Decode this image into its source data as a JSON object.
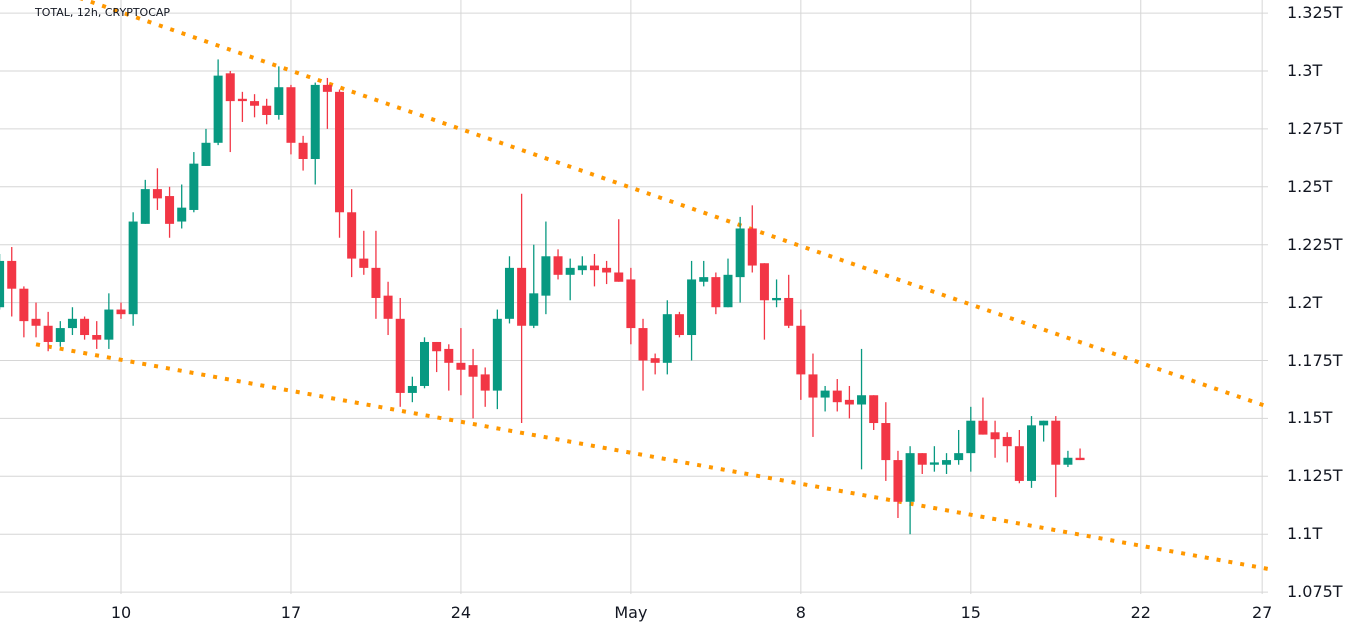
{
  "header": {
    "symbol_label": "TOTAL, 12h, CRYPTOCAP"
  },
  "colors": {
    "up": "#089981",
    "down": "#f23645",
    "trendline": "#ff9800",
    "grid": "#d6d6d6",
    "text": "#131722"
  },
  "chart_data": {
    "type": "candlestick",
    "title": "TOTAL, 12h, CRYPTOCAP",
    "interval": "12h",
    "y_unit": "T",
    "ylim": [
      1.075,
      1.335
    ],
    "grid": true,
    "x_ticks": [
      {
        "label": "10",
        "date": "04-10"
      },
      {
        "label": "17",
        "date": "04-17"
      },
      {
        "label": "24",
        "date": "04-24"
      },
      {
        "label": "May",
        "date": "05-01"
      },
      {
        "label": "8",
        "date": "05-08"
      },
      {
        "label": "15",
        "date": "05-15"
      },
      {
        "label": "22",
        "date": "05-22"
      },
      {
        "label": "27",
        "date": "05-27"
      }
    ],
    "y_ticks": [
      {
        "label": "1.325T",
        "value": 1.325
      },
      {
        "label": "1.3T",
        "value": 1.3
      },
      {
        "label": "1.275T",
        "value": 1.275
      },
      {
        "label": "1.25T",
        "value": 1.25
      },
      {
        "label": "1.225T",
        "value": 1.225
      },
      {
        "label": "1.2T",
        "value": 1.2
      },
      {
        "label": "1.175T",
        "value": 1.175
      },
      {
        "label": "1.15T",
        "value": 1.15
      },
      {
        "label": "1.125T",
        "value": 1.125
      },
      {
        "label": "1.1T",
        "value": 1.1
      },
      {
        "label": "1.075T",
        "value": 1.075
      }
    ],
    "candle_fields": [
      "time",
      "open",
      "high",
      "low",
      "close"
    ],
    "candles": [
      [
        "04-05T00",
        1.198,
        1.221,
        1.197,
        1.218
      ],
      [
        "04-05T12",
        1.218,
        1.224,
        1.194,
        1.206
      ],
      [
        "04-06T00",
        1.206,
        1.207,
        1.185,
        1.192
      ],
      [
        "04-06T12",
        1.193,
        1.2,
        1.185,
        1.19
      ],
      [
        "04-07T00",
        1.19,
        1.196,
        1.179,
        1.183
      ],
      [
        "04-07T12",
        1.183,
        1.192,
        1.181,
        1.189
      ],
      [
        "04-08T00",
        1.189,
        1.198,
        1.186,
        1.193
      ],
      [
        "04-08T12",
        1.193,
        1.194,
        1.184,
        1.186
      ],
      [
        "04-09T00",
        1.186,
        1.192,
        1.18,
        1.184
      ],
      [
        "04-09T12",
        1.184,
        1.204,
        1.18,
        1.197
      ],
      [
        "04-10T00",
        1.197,
        1.2,
        1.193,
        1.195
      ],
      [
        "04-10T12",
        1.195,
        1.239,
        1.19,
        1.235
      ],
      [
        "04-11T00",
        1.234,
        1.253,
        1.234,
        1.249
      ],
      [
        "04-11T12",
        1.249,
        1.258,
        1.24,
        1.245
      ],
      [
        "04-12T00",
        1.246,
        1.25,
        1.228,
        1.234
      ],
      [
        "04-12T12",
        1.235,
        1.251,
        1.232,
        1.241
      ],
      [
        "04-13T00",
        1.24,
        1.265,
        1.239,
        1.26
      ],
      [
        "04-13T12",
        1.259,
        1.275,
        1.259,
        1.269
      ],
      [
        "04-14T00",
        1.269,
        1.305,
        1.268,
        1.298
      ],
      [
        "04-14T12",
        1.299,
        1.3,
        1.265,
        1.287
      ],
      [
        "04-15T00",
        1.288,
        1.291,
        1.278,
        1.287
      ],
      [
        "04-15T12",
        1.287,
        1.29,
        1.28,
        1.285
      ],
      [
        "04-16T00",
        1.285,
        1.288,
        1.277,
        1.281
      ],
      [
        "04-16T12",
        1.281,
        1.302,
        1.279,
        1.293
      ],
      [
        "04-17T00",
        1.293,
        1.294,
        1.264,
        1.269
      ],
      [
        "04-17T12",
        1.269,
        1.272,
        1.257,
        1.262
      ],
      [
        "04-18T00",
        1.262,
        1.295,
        1.251,
        1.294
      ],
      [
        "04-18T12",
        1.294,
        1.297,
        1.275,
        1.291
      ],
      [
        "04-19T00",
        1.291,
        1.292,
        1.228,
        1.239
      ],
      [
        "04-19T12",
        1.239,
        1.249,
        1.211,
        1.219
      ],
      [
        "04-20T00",
        1.219,
        1.231,
        1.212,
        1.215
      ],
      [
        "04-20T12",
        1.215,
        1.231,
        1.193,
        1.202
      ],
      [
        "04-21T00",
        1.203,
        1.209,
        1.186,
        1.193
      ],
      [
        "04-21T12",
        1.193,
        1.202,
        1.155,
        1.161
      ],
      [
        "04-22T00",
        1.161,
        1.168,
        1.157,
        1.164
      ],
      [
        "04-22T12",
        1.164,
        1.185,
        1.163,
        1.183
      ],
      [
        "04-23T00",
        1.183,
        1.183,
        1.17,
        1.179
      ],
      [
        "04-23T12",
        1.18,
        1.182,
        1.162,
        1.174
      ],
      [
        "04-24T00",
        1.174,
        1.189,
        1.16,
        1.171
      ],
      [
        "04-24T12",
        1.173,
        1.18,
        1.15,
        1.168
      ],
      [
        "04-25T00",
        1.169,
        1.172,
        1.155,
        1.162
      ],
      [
        "04-25T12",
        1.162,
        1.197,
        1.154,
        1.193
      ],
      [
        "04-26T00",
        1.193,
        1.22,
        1.191,
        1.215
      ],
      [
        "04-26T12",
        1.215,
        1.247,
        1.148,
        1.19
      ],
      [
        "04-27T00",
        1.19,
        1.225,
        1.189,
        1.204
      ],
      [
        "04-27T12",
        1.203,
        1.235,
        1.195,
        1.22
      ],
      [
        "04-28T00",
        1.22,
        1.223,
        1.21,
        1.212
      ],
      [
        "04-28T12",
        1.212,
        1.219,
        1.201,
        1.215
      ],
      [
        "04-29T00",
        1.214,
        1.22,
        1.212,
        1.216
      ],
      [
        "04-29T12",
        1.216,
        1.221,
        1.207,
        1.214
      ],
      [
        "04-30T00",
        1.215,
        1.218,
        1.208,
        1.213
      ],
      [
        "04-30T12",
        1.213,
        1.236,
        1.209,
        1.209
      ],
      [
        "05-01T00",
        1.21,
        1.215,
        1.182,
        1.189
      ],
      [
        "05-01T12",
        1.189,
        1.193,
        1.162,
        1.175
      ],
      [
        "05-02T00",
        1.176,
        1.178,
        1.169,
        1.174
      ],
      [
        "05-02T12",
        1.174,
        1.201,
        1.169,
        1.195
      ],
      [
        "05-03T00",
        1.195,
        1.196,
        1.185,
        1.186
      ],
      [
        "05-03T12",
        1.186,
        1.218,
        1.175,
        1.21
      ],
      [
        "05-04T00",
        1.209,
        1.218,
        1.207,
        1.211
      ],
      [
        "05-04T12",
        1.211,
        1.213,
        1.195,
        1.198
      ],
      [
        "05-05T00",
        1.198,
        1.219,
        1.198,
        1.212
      ],
      [
        "05-05T12",
        1.211,
        1.237,
        1.2,
        1.232
      ],
      [
        "05-06T00",
        1.232,
        1.242,
        1.213,
        1.216
      ],
      [
        "05-06T12",
        1.217,
        1.217,
        1.184,
        1.201
      ],
      [
        "05-07T00",
        1.201,
        1.21,
        1.198,
        1.202
      ],
      [
        "05-07T12",
        1.202,
        1.212,
        1.189,
        1.19
      ],
      [
        "05-08T00",
        1.19,
        1.197,
        1.158,
        1.169
      ],
      [
        "05-08T12",
        1.169,
        1.178,
        1.142,
        1.159
      ],
      [
        "05-09T00",
        1.159,
        1.164,
        1.153,
        1.162
      ],
      [
        "05-09T12",
        1.162,
        1.167,
        1.153,
        1.157
      ],
      [
        "05-10T00",
        1.158,
        1.164,
        1.15,
        1.156
      ],
      [
        "05-10T12",
        1.156,
        1.18,
        1.128,
        1.16
      ],
      [
        "05-11T00",
        1.16,
        1.16,
        1.145,
        1.148
      ],
      [
        "05-11T12",
        1.148,
        1.157,
        1.123,
        1.132
      ],
      [
        "05-12T00",
        1.132,
        1.136,
        1.107,
        1.114
      ],
      [
        "05-12T12",
        1.114,
        1.138,
        1.1,
        1.135
      ],
      [
        "05-13T00",
        1.135,
        1.135,
        1.126,
        1.13
      ],
      [
        "05-13T12",
        1.13,
        1.138,
        1.127,
        1.131
      ],
      [
        "05-14T00",
        1.13,
        1.135,
        1.126,
        1.132
      ],
      [
        "05-14T12",
        1.132,
        1.145,
        1.13,
        1.135
      ],
      [
        "05-15T00",
        1.135,
        1.155,
        1.127,
        1.149
      ],
      [
        "05-15T12",
        1.149,
        1.159,
        1.143,
        1.143
      ],
      [
        "05-16T00",
        1.144,
        1.149,
        1.133,
        1.141
      ],
      [
        "05-16T12",
        1.142,
        1.144,
        1.131,
        1.138
      ],
      [
        "05-17T00",
        1.138,
        1.145,
        1.122,
        1.123
      ],
      [
        "05-17T12",
        1.123,
        1.151,
        1.12,
        1.147
      ],
      [
        "05-18T00",
        1.147,
        1.149,
        1.14,
        1.149
      ],
      [
        "05-18T12",
        1.149,
        1.151,
        1.116,
        1.13
      ],
      [
        "05-19T00",
        1.13,
        1.136,
        1.129,
        1.133
      ],
      [
        "05-19T12",
        1.133,
        1.137,
        1.132,
        1.132
      ]
    ],
    "trendlines": [
      {
        "id": "upper",
        "style": "dotted",
        "points": [
          [
            "04-09T00",
            1.329
          ],
          [
            "05-27T06",
            1.155
          ]
        ]
      },
      {
        "id": "lower",
        "style": "dotted",
        "points": [
          [
            "04-06T12",
            1.182
          ],
          [
            "05-27T06",
            1.085
          ]
        ]
      }
    ]
  }
}
